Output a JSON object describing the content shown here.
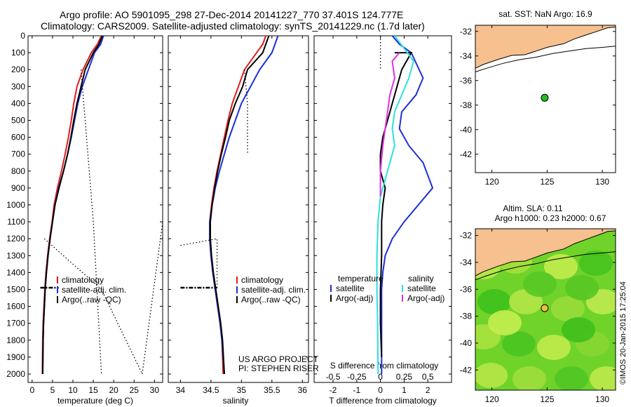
{
  "header": {
    "line1": "Argo profile: AO 5901095_298 27-Dec-2014 20141227_770 37.401S 124.777E",
    "line2": "Climatology: CARS2009. Satellite-adjusted climatology: synTS_20141229.nc (1.7d later)"
  },
  "colors": {
    "climatology": "#e11b1b",
    "satellite": "#1c2fd6",
    "argo": "#000000",
    "satellite_diff": "#2de0e0",
    "argo_s_diff": "#e030e0",
    "land": "#f7c08f",
    "marker_sst": "#22bb22",
    "marker_sla": "#f2c12e"
  },
  "depth_axis": {
    "ylim": [
      0,
      2050
    ],
    "ticks": [
      0,
      100,
      200,
      300,
      400,
      500,
      600,
      700,
      800,
      900,
      1000,
      1100,
      1200,
      1300,
      1400,
      1500,
      1600,
      1700,
      1800,
      1900,
      2000
    ]
  },
  "chart_data": [
    {
      "type": "line",
      "name": "temperature",
      "xlabel": "temperature (deg C)",
      "xlim": [
        -1,
        32
      ],
      "xticks": [
        0,
        5,
        10,
        15,
        20,
        25,
        30
      ],
      "legend": [
        "climatology",
        "satellite-adj. clim.",
        "Argo(..raw -QC)"
      ],
      "series": [
        {
          "name": "climatology",
          "style": "solid",
          "color": "#e11b1b",
          "x": [
            17.0,
            16.0,
            14.5,
            12.5,
            11.0,
            10.2,
            9.6,
            8.9,
            8.1,
            7.2,
            6.2,
            5.4,
            4.9,
            4.3,
            3.8,
            3.4,
            3.1,
            2.9,
            2.7,
            2.6,
            2.5
          ],
          "y": [
            0,
            50,
            100,
            200,
            300,
            400,
            500,
            600,
            700,
            800,
            900,
            1000,
            1100,
            1200,
            1300,
            1400,
            1500,
            1600,
            1700,
            1800,
            2000
          ]
        },
        {
          "name": "satellite-adj. clim.",
          "style": "solid",
          "color": "#1c2fd6",
          "x": [
            17.5,
            16.8,
            15.3,
            13.8,
            12.3,
            11.2,
            10.4,
            9.6,
            8.7,
            7.7,
            6.5,
            5.6,
            5.0,
            4.4,
            3.9,
            3.5,
            3.2,
            3.0,
            2.8,
            2.7,
            2.6
          ],
          "y": [
            0,
            50,
            100,
            200,
            300,
            400,
            500,
            600,
            700,
            800,
            900,
            1000,
            1100,
            1200,
            1300,
            1400,
            1500,
            1600,
            1700,
            1800,
            2000
          ]
        },
        {
          "name": "Argo(..raw -QC)",
          "style": "solid",
          "color": "#000000",
          "x": [
            17.2,
            16.4,
            15.0,
            13.0,
            12.0,
            11.0,
            10.2,
            9.5,
            8.7,
            7.7,
            6.6,
            5.6,
            5.0,
            4.4,
            3.9,
            3.5,
            3.2,
            3.0,
            2.8,
            2.7,
            2.6
          ],
          "y": [
            0,
            50,
            100,
            200,
            300,
            400,
            500,
            600,
            700,
            800,
            900,
            1000,
            1100,
            1200,
            1300,
            1400,
            1500,
            1600,
            1700,
            1800,
            2000
          ]
        },
        {
          "name": "",
          "style": "dotted",
          "color": "#000000",
          "x": [
            12,
            15,
            17
          ],
          "y": [
            200,
            1100,
            2000
          ]
        },
        {
          "name": "",
          "style": "dotted",
          "color": "#000000",
          "x": [
            3,
            17,
            27,
            32
          ],
          "y": [
            1200,
            1500,
            2000,
            1100
          ]
        }
      ],
      "argo_qc_x": [
        2.0,
        6.5
      ],
      "argo_qc_depth": 1490
    },
    {
      "type": "line",
      "name": "salinity",
      "xlabel": "salinity",
      "xlim": [
        33.8,
        36.1
      ],
      "xticks": [
        34,
        34.5,
        35,
        35.5,
        36
      ],
      "xticklabels": [
        "34",
        "34.5",
        "35",
        "35.5",
        "36"
      ],
      "legend": [
        "climatology",
        "satellite-adj. clim.",
        "Argo(..raw -QC)"
      ],
      "annotation": [
        "US ARGO PROJECT",
        "PI: STEPHEN RISER"
      ],
      "series": [
        {
          "name": "climatology",
          "style": "solid",
          "color": "#e11b1b",
          "x": [
            35.4,
            35.35,
            35.25,
            35.05,
            34.95,
            34.85,
            34.78,
            34.72,
            34.66,
            34.6,
            34.55,
            34.51,
            34.48,
            34.48,
            34.5,
            34.53,
            34.57,
            34.61,
            34.65,
            34.68,
            34.7
          ],
          "y": [
            0,
            50,
            100,
            200,
            300,
            400,
            500,
            600,
            700,
            800,
            900,
            1000,
            1100,
            1200,
            1300,
            1400,
            1500,
            1600,
            1700,
            1800,
            2000
          ]
        },
        {
          "name": "satellite-adj. clim.",
          "style": "solid",
          "color": "#1c2fd6",
          "x": [
            35.6,
            35.55,
            35.5,
            35.3,
            35.15,
            35.0,
            34.9,
            34.8,
            34.72,
            34.64,
            34.57,
            34.52,
            34.48,
            34.48,
            34.5,
            34.53,
            34.57,
            34.61,
            34.65,
            34.68,
            34.72
          ],
          "y": [
            0,
            50,
            100,
            200,
            300,
            400,
            500,
            600,
            700,
            800,
            900,
            1000,
            1100,
            1200,
            1300,
            1400,
            1500,
            1600,
            1700,
            1800,
            2000
          ]
        },
        {
          "name": "Argo(..raw -QC)",
          "style": "solid",
          "color": "#000000",
          "x": [
            35.45,
            35.4,
            35.35,
            35.1,
            35.02,
            34.9,
            34.8,
            34.74,
            34.67,
            34.61,
            34.56,
            34.52,
            34.49,
            34.49,
            34.51,
            34.54,
            34.58,
            34.62,
            34.66,
            34.69,
            34.72
          ],
          "y": [
            0,
            50,
            100,
            200,
            300,
            400,
            500,
            600,
            700,
            800,
            900,
            1000,
            1100,
            1200,
            1300,
            1400,
            1500,
            1600,
            1700,
            1800,
            2000
          ]
        },
        {
          "name": "",
          "style": "dotted",
          "color": "#000000",
          "x": [
            35.05,
            35.1,
            35.1
          ],
          "y": [
            200,
            400,
            700
          ]
        },
        {
          "name": "",
          "style": "dotted",
          "color": "#000000",
          "x": [
            34.0,
            34.6,
            34.6
          ],
          "y": [
            1240,
            1200,
            1500
          ]
        }
      ],
      "argo_qc_x": [
        34.0,
        34.6
      ],
      "argo_qc_depth": 1490
    },
    {
      "type": "line",
      "name": "differences",
      "xlabel": "T difference from climatology",
      "xlabel_top": "S difference from climatology",
      "xlim": [
        -2.8,
        3.0
      ],
      "xticks_bottom": [
        -2,
        -1,
        0,
        1,
        2
      ],
      "xticks_top": [
        -0.5,
        -0.25,
        0,
        0.25,
        0.5
      ],
      "xticklabels_top": [
        "-0.5",
        "-0.25",
        "0",
        "0.25",
        "0.5"
      ],
      "legend_temperature": [
        "temperature",
        "satellite",
        "Argo(-adj)"
      ],
      "legend_salinity": [
        "salinity",
        "satellite",
        "Argo(-adj)"
      ],
      "series": [
        {
          "name": "temperature satellite",
          "style": "solid",
          "color": "#1c2fd6",
          "x": [
            0.5,
            0.8,
            1.3,
            1.8,
            1.5,
            0.9,
            0.8,
            1.2,
            1.8,
            2.2,
            1.6,
            1.0,
            0.5,
            0.2,
            0.1,
            0.05,
            0.05,
            0.05,
            0.05
          ],
          "y": [
            0,
            50,
            100,
            250,
            350,
            450,
            550,
            650,
            750,
            900,
            1000,
            1100,
            1200,
            1300,
            1400,
            1500,
            1600,
            1800,
            2000
          ]
        },
        {
          "name": "temperature Argo(-adj)",
          "style": "solid",
          "color": "#000000",
          "x": [
            0.6,
            1.3,
            0.9,
            0.7,
            0.5,
            0.3,
            0.1,
            0.0,
            0.0,
            0.2,
            0.1,
            0.05,
            0.05,
            0.05,
            0.0,
            0.0,
            0.05
          ],
          "y": [
            100,
            100,
            200,
            300,
            400,
            500,
            600,
            700,
            800,
            900,
            1000,
            1100,
            1200,
            1300,
            1500,
            1700,
            1900
          ]
        },
        {
          "name": "salinity satellite",
          "style": "solid",
          "color": "#2de0e0",
          "x": [
            0.6,
            1.4,
            1.2,
            0.9,
            0.6,
            0.5,
            0.6,
            0.4,
            0.2,
            0.0,
            -0.1,
            -0.15,
            -0.15,
            -0.12,
            -0.1
          ],
          "y": [
            0,
            150,
            250,
            350,
            450,
            550,
            650,
            750,
            850,
            950,
            1100,
            1300,
            1500,
            1700,
            2000
          ]
        },
        {
          "name": "salinity Argo(-adj)",
          "style": "solid",
          "color": "#e030e0",
          "x": [
            0.8,
            0.5,
            0.6,
            0.4,
            0.3,
            0.2,
            0.1,
            0.0,
            0.0
          ],
          "y": [
            100,
            150,
            250,
            350,
            450,
            550,
            650,
            800,
            950
          ]
        },
        {
          "name": "",
          "style": "dotted",
          "color": "#000000",
          "x": [
            0,
            0
          ],
          "y": [
            0,
            200
          ]
        }
      ]
    }
  ],
  "maps": [
    {
      "name": "sst",
      "title": "sat. SST: NaN Argo: 16.9",
      "xticks": [
        120,
        125,
        130
      ],
      "yticks": [
        -32,
        -34,
        -36,
        -38,
        -40,
        -42
      ],
      "lon": [
        118.5,
        131.2
      ],
      "lat": [
        -31.5,
        -43.5
      ],
      "marker": {
        "lon": 124.777,
        "lat": -37.401
      }
    },
    {
      "name": "sla",
      "title_line1": "Altim. SLA: 0.11",
      "title_line2": "Argo h1000: 0.23 h2000: 0.67",
      "xticks": [
        120,
        125,
        130
      ],
      "yticks": [
        -32,
        -34,
        -36,
        -38,
        -40,
        -42
      ],
      "lon": [
        118.5,
        131.2
      ],
      "lat": [
        -31.5,
        -43.5
      ],
      "marker": {
        "lon": 124.777,
        "lat": -37.401
      }
    }
  ],
  "watermark": "©IMOS 20-Jan-2015 17:25:04"
}
